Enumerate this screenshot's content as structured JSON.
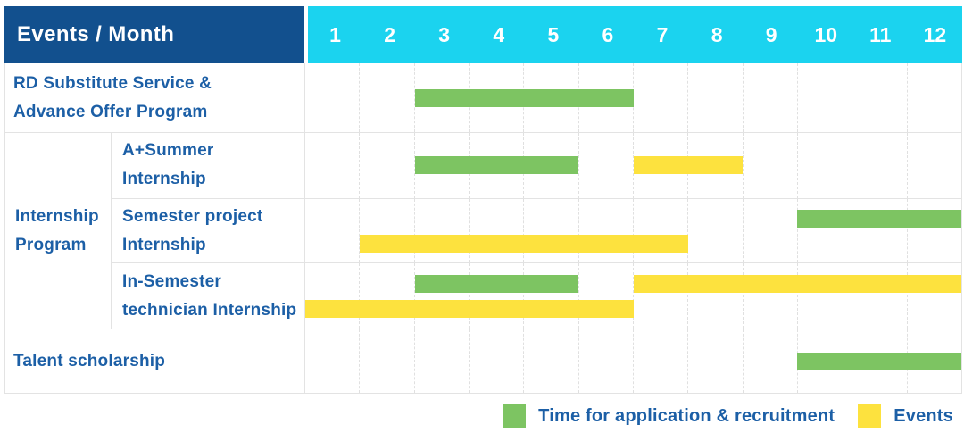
{
  "header": {
    "corner_label": "Events / Month",
    "months": [
      "1",
      "2",
      "3",
      "4",
      "5",
      "6",
      "7",
      "8",
      "9",
      "10",
      "11",
      "12"
    ]
  },
  "chart_data": {
    "type": "bar",
    "subtype": "gantt-schedule",
    "title": "Events / Month",
    "xlabel": "Month",
    "x_range": [
      1,
      12
    ],
    "grid": "vertical-dashed",
    "legend_position": "bottom-right",
    "series_names": {
      "green": "Time for application & recruitment",
      "yellow": "Events"
    },
    "rows": [
      {
        "id": "rd",
        "label": "RD Substitute Service & Advance Offer Program",
        "label_lines": [
          "RD Substitute Service &",
          "Advance Offer Program"
        ],
        "lines": [
          [
            {
              "color": "green",
              "start": 3,
              "end": 6
            }
          ]
        ]
      },
      {
        "id": "internship-group",
        "group_label": "Internship Program",
        "group_label_lines": [
          "Internship",
          "Program"
        ],
        "children": [
          {
            "id": "a-summer",
            "label": "A+Summer Internship",
            "label_lines": [
              "A+Summer",
              "Internship"
            ],
            "lines": [
              [
                {
                  "color": "green",
                  "start": 3,
                  "end": 5
                },
                {
                  "color": "yellow",
                  "start": 7,
                  "end": 8
                }
              ]
            ]
          },
          {
            "id": "semester-project",
            "label": "Semester project Internship",
            "label_lines": [
              "Semester project",
              "Internship"
            ],
            "lines": [
              [
                {
                  "color": "green",
                  "start": 10,
                  "end": 12
                }
              ],
              [
                {
                  "color": "yellow",
                  "start": 2,
                  "end": 7
                }
              ]
            ]
          },
          {
            "id": "in-semester",
            "label": "In-Semester technician Internship",
            "label_lines": [
              "In-Semester",
              "technician Internship"
            ],
            "lines": [
              [
                {
                  "color": "green",
                  "start": 3,
                  "end": 5
                },
                {
                  "color": "yellow",
                  "start": 7,
                  "end": 12
                }
              ],
              [
                {
                  "color": "yellow",
                  "start": 1,
                  "end": 6
                }
              ]
            ]
          }
        ]
      },
      {
        "id": "talent",
        "label": "Talent scholarship",
        "label_lines": [
          "Talent scholarship"
        ],
        "lines": [
          [
            {
              "color": "green",
              "start": 10,
              "end": 12
            }
          ]
        ]
      }
    ]
  },
  "legend": [
    {
      "color": "green",
      "label": "Time for application & recruitment"
    },
    {
      "color": "yellow",
      "label": "Events"
    }
  ],
  "colors": {
    "header_bg": "#12508e",
    "month_header_bg": "#1bd3ef",
    "bar_green": "#7dc462",
    "bar_yellow": "#fde23e",
    "text_blue": "#1c5fa6",
    "grid_line": "#e0e0e0",
    "table_border": "#e3e3e3"
  }
}
